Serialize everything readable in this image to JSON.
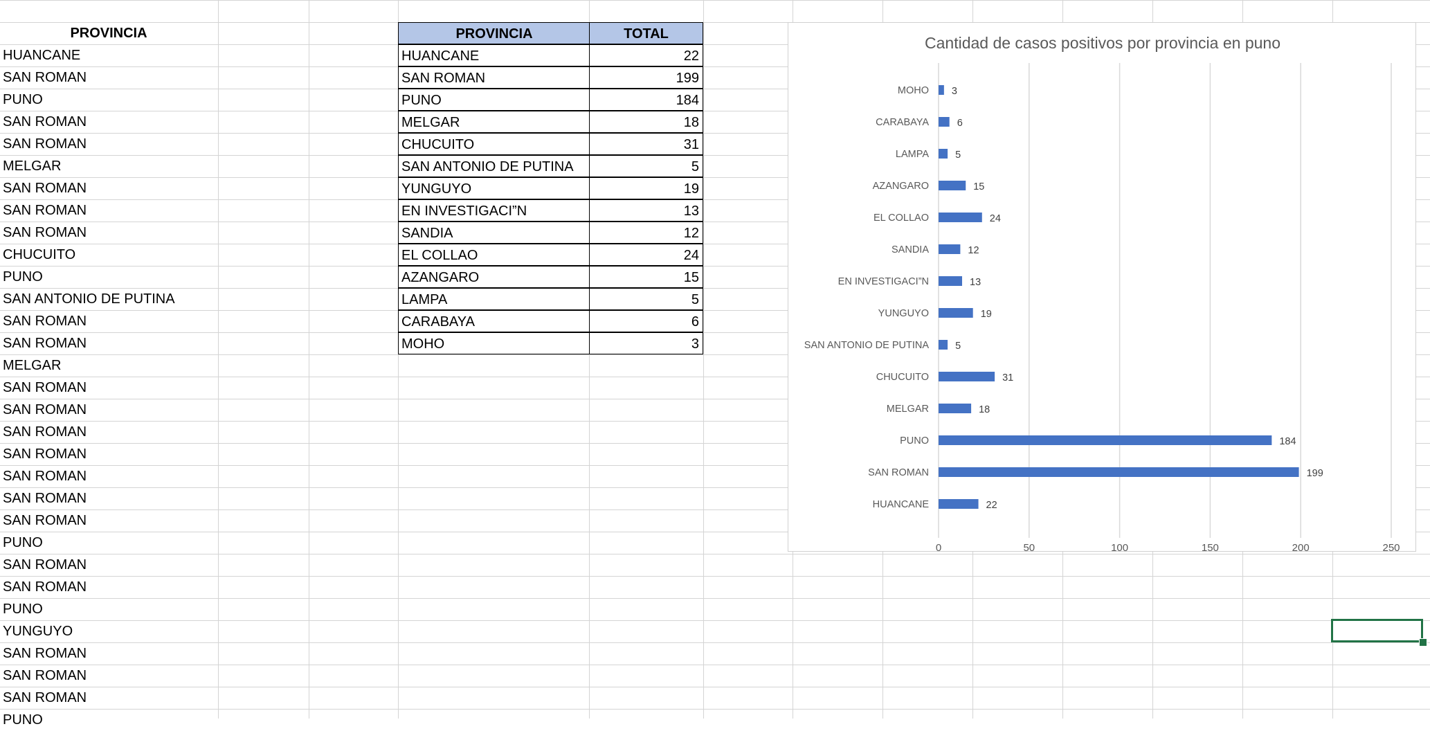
{
  "sheet": {
    "column_a_header": "PROVINCIA",
    "column_a_values": [
      "HUANCANE",
      "SAN ROMAN",
      "PUNO",
      "SAN ROMAN",
      "SAN ROMAN",
      "MELGAR",
      "SAN ROMAN",
      "SAN ROMAN",
      "SAN ROMAN",
      "CHUCUITO",
      "PUNO",
      "SAN ANTONIO DE PUTINA",
      "SAN ROMAN",
      "SAN ROMAN",
      "MELGAR",
      "SAN ROMAN",
      "SAN ROMAN",
      "SAN ROMAN",
      "SAN ROMAN",
      "SAN ROMAN",
      "SAN ROMAN",
      "SAN ROMAN",
      "PUNO",
      "SAN ROMAN",
      "SAN ROMAN",
      "PUNO",
      "YUNGUYO",
      "SAN ROMAN",
      "SAN ROMAN",
      "SAN ROMAN",
      "PUNO"
    ]
  },
  "summary_table": {
    "headers": [
      "PROVINCIA",
      "TOTAL"
    ],
    "rows": [
      [
        "HUANCANE",
        "22"
      ],
      [
        "SAN ROMAN",
        "199"
      ],
      [
        "PUNO",
        "184"
      ],
      [
        "MELGAR",
        "18"
      ],
      [
        "CHUCUITO",
        "31"
      ],
      [
        "SAN ANTONIO DE PUTINA",
        "5"
      ],
      [
        "YUNGUYO",
        "19"
      ],
      [
        "EN INVESTIGACI”N",
        "13"
      ],
      [
        "SANDIA",
        "12"
      ],
      [
        "EL COLLAO",
        "24"
      ],
      [
        "AZANGARO",
        "15"
      ],
      [
        "LAMPA",
        "5"
      ],
      [
        "CARABAYA",
        "6"
      ],
      [
        "MOHO",
        "3"
      ]
    ]
  },
  "colors": {
    "bar": "#4472c4",
    "header_fill": "#b4c6e7",
    "gridline": "#d4d4d4",
    "selection": "#217346"
  },
  "chart_data": {
    "type": "bar",
    "orientation": "horizontal",
    "title": "Cantidad de casos positivos por provincia en puno",
    "categories": [
      "HUANCANE",
      "SAN ROMAN",
      "PUNO",
      "MELGAR",
      "CHUCUITO",
      "SAN ANTONIO DE PUTINA",
      "YUNGUYO",
      "EN INVESTIGACI”N",
      "SANDIA",
      "EL COLLAO",
      "AZANGARO",
      "LAMPA",
      "CARABAYA",
      "MOHO"
    ],
    "values": [
      22,
      199,
      184,
      18,
      31,
      5,
      19,
      13,
      12,
      24,
      15,
      5,
      6,
      3
    ],
    "xlim": [
      0,
      250
    ],
    "xticks": [
      0,
      50,
      100,
      150,
      200,
      250
    ],
    "grid": true,
    "data_labels": true,
    "legend": "none"
  }
}
